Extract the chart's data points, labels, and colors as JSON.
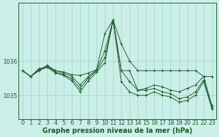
{
  "background_color": "#cceee8",
  "grid_color": "#99ddcc",
  "line_color": "#1a5c2a",
  "xlabel": "Graphe pression niveau de la mer (hPa)",
  "xlabel_fontsize": 7,
  "tick_label_fontsize": 6,
  "ylim": [
    1034.3,
    1037.7
  ],
  "yticks": [
    1035,
    1036
  ],
  "xlim": [
    -0.5,
    23.5
  ],
  "xticks": [
    0,
    1,
    2,
    3,
    4,
    5,
    6,
    7,
    8,
    9,
    10,
    11,
    12,
    13,
    14,
    15,
    16,
    17,
    18,
    19,
    20,
    21,
    22,
    23
  ],
  "series": [
    [
      1035.72,
      1035.55,
      1035.72,
      1035.82,
      1035.72,
      1035.68,
      1035.6,
      1035.58,
      1035.65,
      1035.75,
      1036.8,
      1037.2,
      1036.5,
      1036.0,
      1035.72,
      1035.72,
      1035.72,
      1035.72,
      1035.72,
      1035.72,
      1035.72,
      1035.72,
      1035.55,
      1035.55
    ],
    [
      1035.72,
      1035.55,
      1035.72,
      1035.88,
      1035.72,
      1035.65,
      1035.55,
      1035.3,
      1035.55,
      1035.75,
      1036.3,
      1037.2,
      1035.72,
      1035.72,
      1035.15,
      1035.2,
      1035.3,
      1035.25,
      1035.15,
      1035.1,
      1035.2,
      1035.3,
      1035.55,
      1034.7
    ],
    [
      1035.72,
      1035.55,
      1035.75,
      1035.85,
      1035.68,
      1035.6,
      1035.48,
      1035.2,
      1035.5,
      1035.72,
      1036.1,
      1037.2,
      1035.72,
      1035.4,
      1035.15,
      1035.15,
      1035.2,
      1035.1,
      1035.05,
      1034.9,
      1034.95,
      1035.1,
      1035.45,
      1034.65
    ],
    [
      1035.72,
      1035.55,
      1035.78,
      1035.82,
      1035.65,
      1035.58,
      1035.42,
      1035.1,
      1035.42,
      1035.68,
      1035.95,
      1037.2,
      1035.4,
      1035.1,
      1035.0,
      1035.0,
      1035.1,
      1035.0,
      1034.95,
      1034.8,
      1034.85,
      1035.0,
      1035.4,
      1034.6
    ]
  ]
}
